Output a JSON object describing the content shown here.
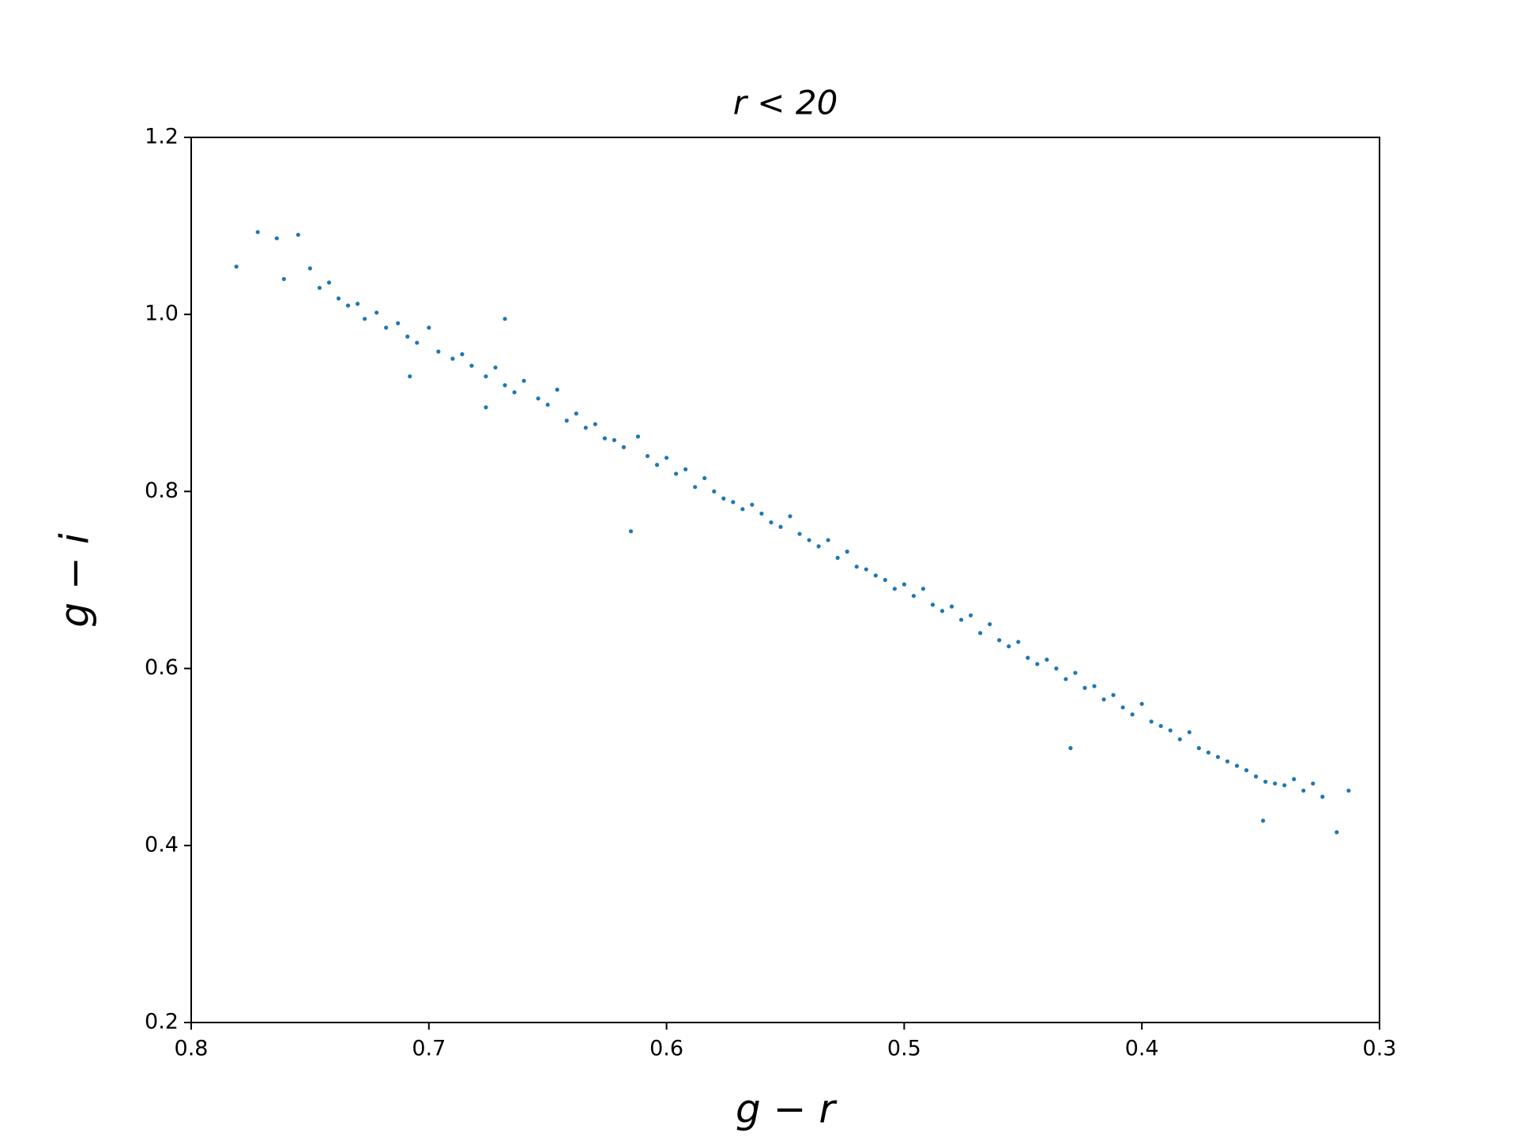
{
  "chart_data": {
    "type": "scatter",
    "title": "r < 20",
    "x_label": "g − r",
    "y_label": "g − i",
    "color": "#1f77b4",
    "xlim": [
      0.8,
      0.3
    ],
    "xticks": [
      0.8,
      0.7,
      0.6,
      0.5,
      0.4,
      0.3
    ],
    "ylim": [
      0.2,
      1.2
    ],
    "yticks": [
      0.2,
      0.4,
      0.6,
      0.8,
      {
        "value": 1,
        "label": "1.0"
      },
      1.2
    ],
    "grid": false,
    "x": [
      0.781,
      0.772,
      0.764,
      0.755,
      0.761,
      0.75,
      0.746,
      0.742,
      0.738,
      0.734,
      0.73,
      0.727,
      0.722,
      0.718,
      0.713,
      0.709,
      0.705,
      0.7,
      0.696,
      0.708,
      0.69,
      0.686,
      0.682,
      0.676,
      0.672,
      0.668,
      0.668,
      0.664,
      0.66,
      0.676,
      0.654,
      0.65,
      0.646,
      0.642,
      0.638,
      0.634,
      0.63,
      0.626,
      0.622,
      0.618,
      0.615,
      0.612,
      0.608,
      0.604,
      0.6,
      0.596,
      0.592,
      0.588,
      0.584,
      0.58,
      0.576,
      0.572,
      0.568,
      0.564,
      0.56,
      0.556,
      0.552,
      0.548,
      0.544,
      0.54,
      0.536,
      0.532,
      0.528,
      0.524,
      0.52,
      0.516,
      0.512,
      0.508,
      0.504,
      0.5,
      0.496,
      0.492,
      0.488,
      0.484,
      0.48,
      0.476,
      0.472,
      0.468,
      0.464,
      0.46,
      0.456,
      0.452,
      0.448,
      0.444,
      0.44,
      0.436,
      0.432,
      0.43,
      0.428,
      0.424,
      0.42,
      0.416,
      0.412,
      0.408,
      0.404,
      0.4,
      0.396,
      0.392,
      0.388,
      0.384,
      0.38,
      0.376,
      0.372,
      0.368,
      0.364,
      0.36,
      0.356,
      0.352,
      0.349,
      0.348,
      0.344,
      0.34,
      0.336,
      0.332,
      0.328,
      0.324,
      0.318,
      0.313
    ],
    "values": [
      1.054,
      1.093,
      1.086,
      1.09,
      1.04,
      1.052,
      1.03,
      1.036,
      1.018,
      1.01,
      1.012,
      0.995,
      1.002,
      0.985,
      0.99,
      0.975,
      0.968,
      0.985,
      0.958,
      0.93,
      0.95,
      0.955,
      0.942,
      0.93,
      0.94,
      0.995,
      0.92,
      0.912,
      0.925,
      0.895,
      0.905,
      0.898,
      0.915,
      0.88,
      0.888,
      0.872,
      0.876,
      0.86,
      0.858,
      0.85,
      0.755,
      0.862,
      0.84,
      0.83,
      0.838,
      0.82,
      0.825,
      0.805,
      0.815,
      0.8,
      0.792,
      0.788,
      0.78,
      0.785,
      0.775,
      0.765,
      0.76,
      0.772,
      0.752,
      0.745,
      0.738,
      0.745,
      0.725,
      0.732,
      0.715,
      0.712,
      0.705,
      0.7,
      0.69,
      0.695,
      0.682,
      0.69,
      0.672,
      0.665,
      0.67,
      0.655,
      0.66,
      0.64,
      0.65,
      0.632,
      0.625,
      0.63,
      0.612,
      0.605,
      0.61,
      0.6,
      0.588,
      0.51,
      0.595,
      0.578,
      0.58,
      0.565,
      0.57,
      0.556,
      0.548,
      0.56,
      0.54,
      0.535,
      0.53,
      0.52,
      0.528,
      0.51,
      0.505,
      0.5,
      0.495,
      0.49,
      0.485,
      0.478,
      0.428,
      0.472,
      0.47,
      0.468,
      0.475,
      0.462,
      0.47,
      0.455,
      0.415,
      0.462
    ]
  }
}
